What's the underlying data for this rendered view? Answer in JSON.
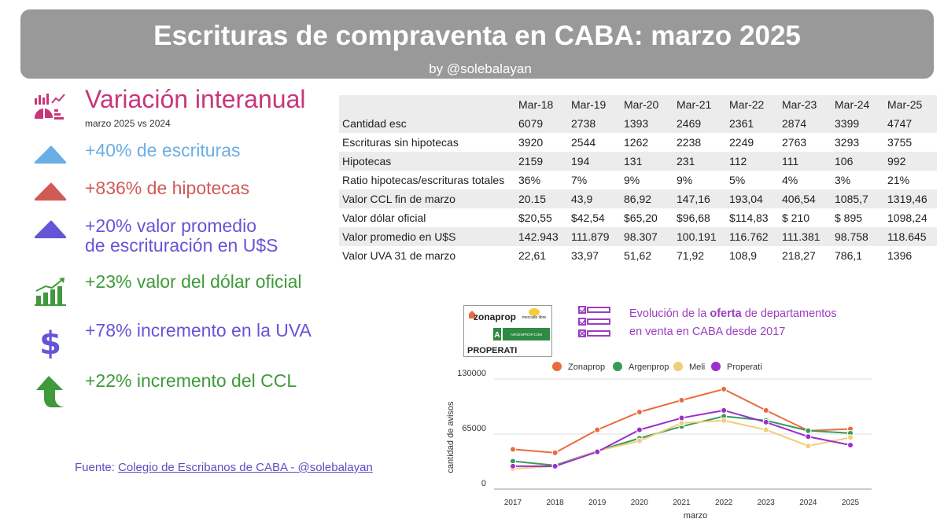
{
  "header": {
    "title": "Escrituras de compraventa en CABA:  marzo 2025",
    "subtitle": "by @solebalayan"
  },
  "summary": {
    "title": "Variación  interanual",
    "subtitle": "marzo 2025 vs 2024",
    "items": [
      {
        "text": "+40% de escrituras",
        "color": "#6aaee6",
        "icon": "triangle-up-icon"
      },
      {
        "text": "+836% de hipotecas",
        "color": "#d05a56",
        "icon": "triangle-up-icon"
      },
      {
        "text": "+20% valor promedio",
        "text2": "de escrituración en U$S",
        "color": "#6555d6",
        "icon": "triangle-up-icon"
      },
      {
        "text": "+23% valor del dólar oficial",
        "color": "#3e9a3a",
        "icon": "bar-growth-icon"
      },
      {
        "text": "+78% incremento en la UVA",
        "color": "#6555d6",
        "icon": "dollar-icon"
      },
      {
        "text": "+22% incremento del CCL",
        "color": "#3e9a3a",
        "icon": "arrow-up-icon"
      }
    ]
  },
  "source": {
    "prefix": "Fuente: ",
    "link": "Colegio de  Escribanos de CABA  -  @solebalayan"
  },
  "table": {
    "headers": [
      "",
      "Mar-18",
      "Mar-19",
      "Mar-20",
      "Mar-21",
      "Mar-22",
      "Mar-23",
      "Mar-24",
      "Mar-25"
    ],
    "rows": [
      [
        "Cantidad esc",
        "6079",
        "2738",
        "1393",
        "2469",
        "2361",
        "2874",
        "3399",
        "4747"
      ],
      [
        "Escrituras sin hipotecas",
        "3920",
        "2544",
        "1262",
        "2238",
        "2249",
        "2763",
        "3293",
        "3755"
      ],
      [
        "Hipotecas",
        "2159",
        "194",
        "131",
        "231",
        "112",
        "111",
        "106",
        "992"
      ],
      [
        "Ratio hipotecas/escrituras totales",
        "36%",
        "7%",
        "9%",
        "9%",
        "5%",
        "4%",
        "3%",
        "21%"
      ],
      [
        "Valor CCL fin de marzo",
        "20.15",
        "43,9",
        "86,92",
        "147,16",
        "193,04",
        "406,54",
        "1085,7",
        "1319,46"
      ],
      [
        "Valor dólar oficial",
        "$20,55",
        "$42,54",
        "$65,20",
        "$96,68",
        "$114,83",
        "$ 210",
        "$ 895",
        "1098,24"
      ],
      [
        "Valor promedio en U$S",
        "142.943",
        "111.879",
        "98.307",
        "100.191",
        "116.762",
        "111.381",
        "98.758",
        "118.645"
      ],
      [
        "Valor UVA 31 de marzo",
        "22,61",
        "33,97",
        "51,62",
        "71,92",
        "108,9",
        "218,27",
        "786,1",
        "1396"
      ]
    ]
  },
  "logos": {
    "zonaprop": "zonaprop",
    "mercadolibre": "mercado libre",
    "argenprop": "ARGENPROP.COM",
    "properati": "PROPERATI"
  },
  "offer": {
    "line1_pre": "Evolución de la ",
    "line1_bold": "oferta",
    "line1_post": " de departamentos",
    "line2": "en venta en CABA desde 2017"
  },
  "chart_data": {
    "type": "line",
    "title": "",
    "xlabel": "marzo",
    "ylabel": "cantidad de avisos",
    "x": [
      "2017",
      "2018",
      "2019",
      "2020",
      "2021",
      "2022",
      "2023",
      "2024",
      "2025"
    ],
    "ylim": [
      0,
      130000
    ],
    "yticks": [
      "0",
      "65000",
      "130000"
    ],
    "grid": true,
    "legend_position": "top",
    "series": [
      {
        "name": "Zonaprop",
        "color": "#ea6b3d",
        "values": [
          47000,
          43000,
          70000,
          91000,
          105000,
          118000,
          93000,
          69000,
          71000
        ]
      },
      {
        "name": "Argenprop",
        "color": "#3a9a5b",
        "values": [
          33000,
          28000,
          45000,
          60000,
          74000,
          86000,
          81000,
          69000,
          66000
        ]
      },
      {
        "name": "Meli",
        "color": "#f1cd79",
        "values": [
          24000,
          27000,
          45000,
          57000,
          78000,
          81000,
          70000,
          51000,
          61000
        ]
      },
      {
        "name": "Properati",
        "color": "#9b2fc9",
        "values": [
          27000,
          27000,
          44000,
          70000,
          84000,
          93000,
          79000,
          62000,
          52000
        ]
      }
    ]
  }
}
